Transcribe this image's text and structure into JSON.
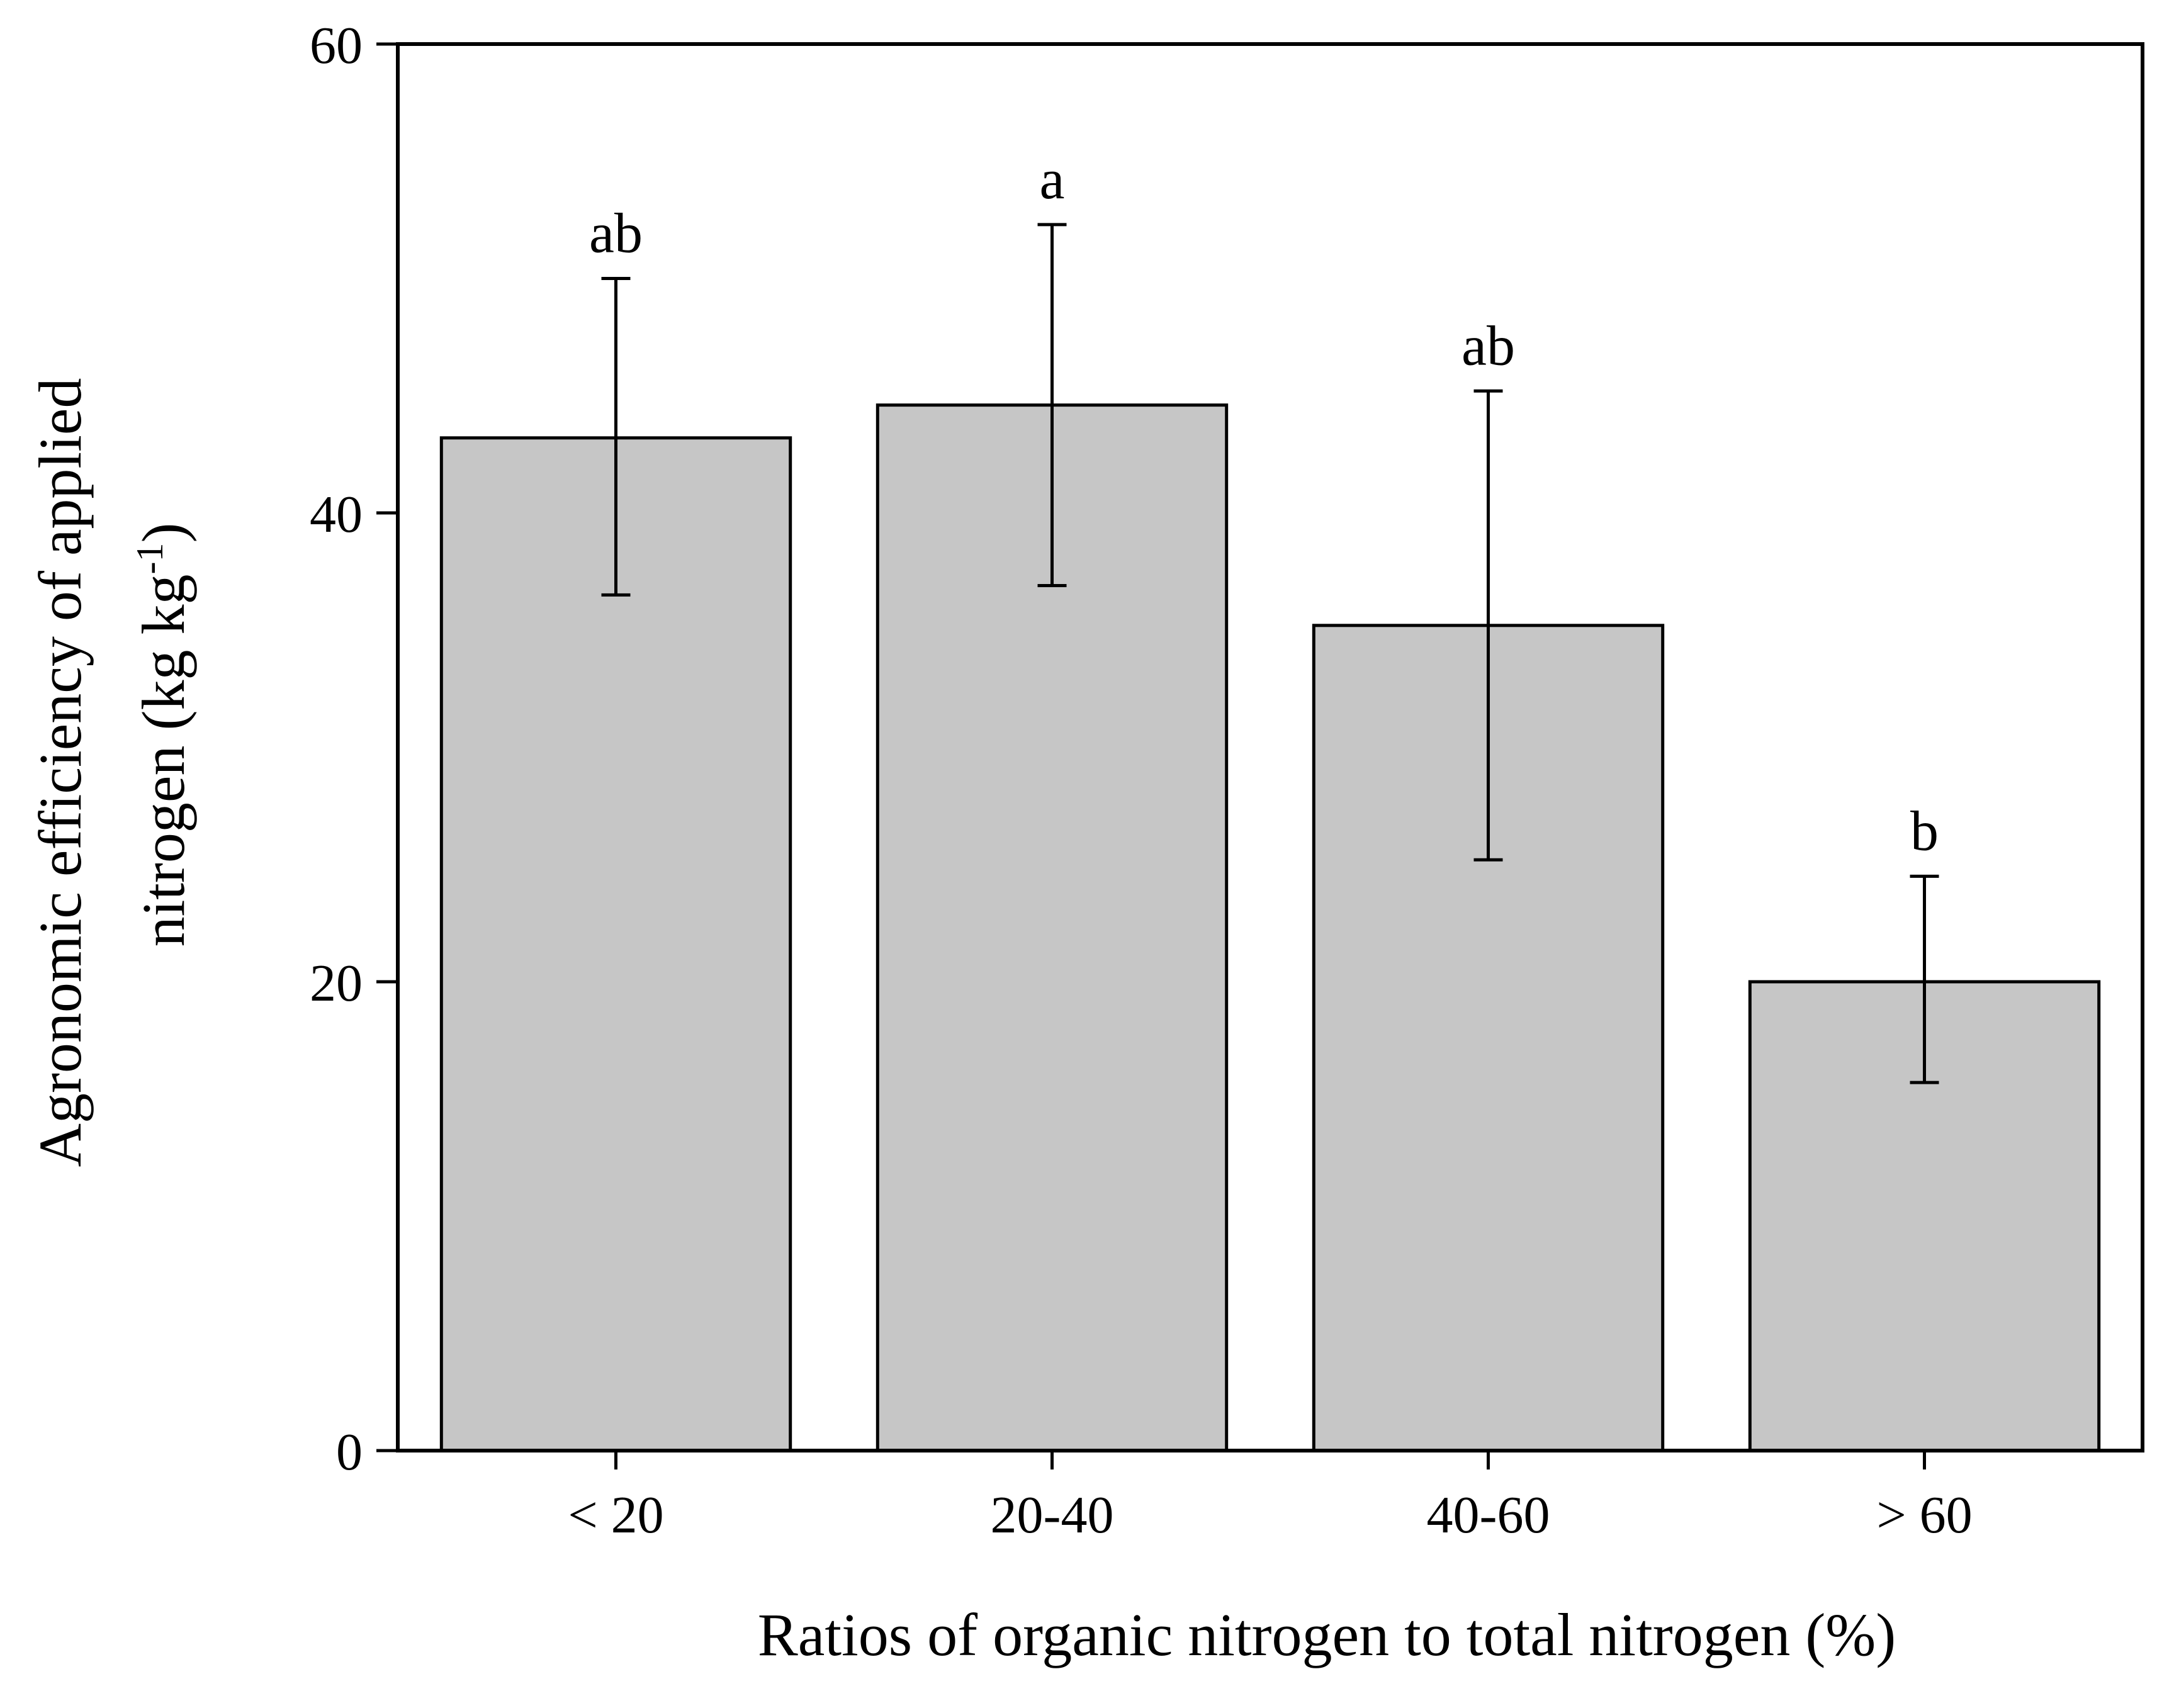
{
  "chart_data": {
    "type": "bar",
    "categories": [
      "< 20",
      "20-40",
      "40-60",
      "> 60"
    ],
    "values": [
      43.2,
      44.6,
      35.2,
      20.0
    ],
    "errors_upper": [
      50.0,
      52.3,
      45.2,
      24.5
    ],
    "errors_lower": [
      36.5,
      36.9,
      25.2,
      15.7
    ],
    "significance": [
      "ab",
      "a",
      "ab",
      "b"
    ],
    "xlabel": "Ratios of organic nitrogen to total nitrogen (%)",
    "ylabel_line1": "Agronomic efficiency of applied",
    "ylabel_line2_main": "nitrogen (kg kg",
    "ylabel_superscript": "-1",
    "ylabel_line2_end": ")",
    "ylim": [
      0,
      60
    ],
    "yticks": [
      0,
      20,
      40,
      60
    ],
    "grid": false,
    "colors": {
      "bar_fill": "#c6c6c6",
      "bar_stroke": "#000000",
      "axis": "#000000"
    }
  }
}
